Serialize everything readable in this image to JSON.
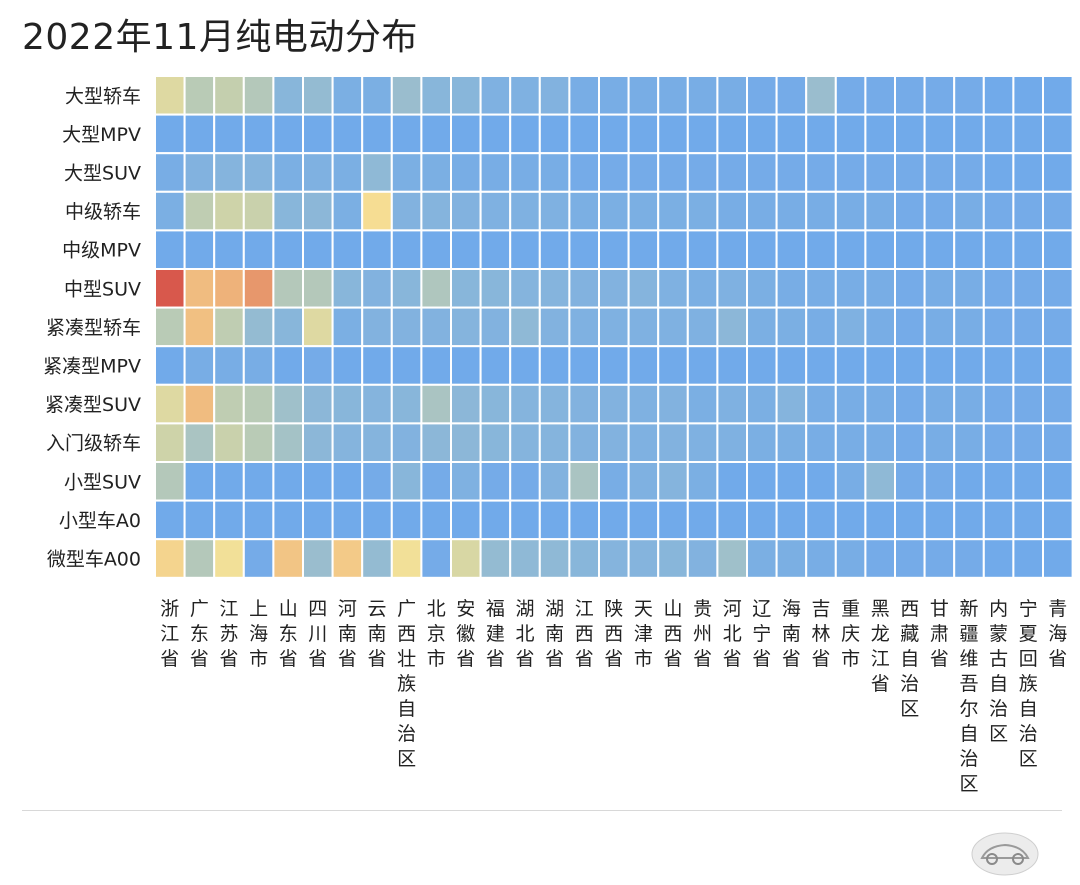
{
  "title": "2022年11月纯电动分布",
  "chart_data": {
    "type": "heatmap",
    "title": "2022年11月纯电动分布",
    "rows": [
      "大型轿车",
      "大型MPV",
      "大型SUV",
      "中级轿车",
      "中级MPV",
      "中型SUV",
      "紧凑型轿车",
      "紧凑型MPV",
      "紧凑型SUV",
      "入门级轿车",
      "小型SUV",
      "小型车A0",
      "微型车A00"
    ],
    "columns": [
      "浙江省",
      "广东省",
      "江苏省",
      "上海市",
      "山东省",
      "四川省",
      "河南省",
      "云南省",
      "广西壮族自治区",
      "北京市",
      "安徽省",
      "福建省",
      "湖北省",
      "湖南省",
      "江西省",
      "陕西省",
      "天津市",
      "山西省",
      "贵州省",
      "河北省",
      "辽宁省",
      "海南省",
      "吉林省",
      "重庆市",
      "黑龙江省",
      "西藏自治区",
      "甘肃省",
      "新疆维吾尔自治区",
      "内蒙古自治区",
      "宁夏回族自治区",
      "青海省"
    ],
    "values": [
      [
        0.5,
        0.36,
        0.4,
        0.34,
        0.16,
        0.22,
        0.08,
        0.08,
        0.24,
        0.16,
        0.16,
        0.1,
        0.1,
        0.12,
        0.06,
        0.06,
        0.06,
        0.06,
        0.06,
        0.06,
        0.04,
        0.04,
        0.24,
        0.04,
        0.04,
        0.04,
        0.04,
        0.04,
        0.02,
        0.02,
        0.02
      ],
      [
        0.02,
        0.02,
        0.02,
        0.02,
        0.02,
        0.02,
        0.02,
        0.02,
        0.02,
        0.02,
        0.02,
        0.02,
        0.02,
        0.02,
        0.02,
        0.02,
        0.02,
        0.02,
        0.02,
        0.02,
        0.02,
        0.02,
        0.02,
        0.02,
        0.02,
        0.02,
        0.02,
        0.02,
        0.02,
        0.02,
        0.02
      ],
      [
        0.06,
        0.12,
        0.14,
        0.14,
        0.08,
        0.1,
        0.08,
        0.2,
        0.08,
        0.08,
        0.06,
        0.06,
        0.06,
        0.06,
        0.04,
        0.04,
        0.04,
        0.04,
        0.04,
        0.04,
        0.04,
        0.04,
        0.04,
        0.04,
        0.04,
        0.04,
        0.04,
        0.04,
        0.02,
        0.02,
        0.02
      ],
      [
        0.08,
        0.38,
        0.44,
        0.42,
        0.16,
        0.18,
        0.08,
        0.62,
        0.12,
        0.14,
        0.12,
        0.1,
        0.1,
        0.1,
        0.08,
        0.08,
        0.08,
        0.08,
        0.08,
        0.06,
        0.06,
        0.06,
        0.06,
        0.06,
        0.06,
        0.04,
        0.04,
        0.06,
        0.04,
        0.04,
        0.04
      ],
      [
        0.02,
        0.02,
        0.02,
        0.02,
        0.02,
        0.02,
        0.02,
        0.02,
        0.02,
        0.02,
        0.02,
        0.02,
        0.02,
        0.02,
        0.02,
        0.02,
        0.02,
        0.02,
        0.02,
        0.02,
        0.02,
        0.02,
        0.02,
        0.02,
        0.02,
        0.02,
        0.02,
        0.02,
        0.02,
        0.02,
        0.02
      ],
      [
        1.0,
        0.76,
        0.8,
        0.86,
        0.34,
        0.34,
        0.16,
        0.12,
        0.16,
        0.32,
        0.16,
        0.16,
        0.14,
        0.14,
        0.12,
        0.12,
        0.14,
        0.1,
        0.08,
        0.1,
        0.08,
        0.06,
        0.06,
        0.06,
        0.06,
        0.04,
        0.06,
        0.06,
        0.04,
        0.04,
        0.04
      ],
      [
        0.36,
        0.74,
        0.38,
        0.22,
        0.16,
        0.5,
        0.08,
        0.12,
        0.12,
        0.12,
        0.14,
        0.12,
        0.2,
        0.12,
        0.1,
        0.1,
        0.1,
        0.1,
        0.1,
        0.18,
        0.08,
        0.08,
        0.06,
        0.1,
        0.06,
        0.04,
        0.06,
        0.06,
        0.04,
        0.04,
        0.04
      ],
      [
        0.02,
        0.06,
        0.06,
        0.06,
        0.02,
        0.04,
        0.02,
        0.02,
        0.02,
        0.02,
        0.02,
        0.02,
        0.02,
        0.02,
        0.02,
        0.02,
        0.02,
        0.02,
        0.02,
        0.02,
        0.02,
        0.02,
        0.02,
        0.02,
        0.02,
        0.02,
        0.02,
        0.02,
        0.02,
        0.02,
        0.02
      ],
      [
        0.5,
        0.76,
        0.38,
        0.36,
        0.26,
        0.18,
        0.16,
        0.14,
        0.16,
        0.3,
        0.18,
        0.16,
        0.14,
        0.14,
        0.12,
        0.12,
        0.1,
        0.12,
        0.08,
        0.1,
        0.08,
        0.14,
        0.06,
        0.06,
        0.06,
        0.04,
        0.06,
        0.06,
        0.04,
        0.04,
        0.04
      ],
      [
        0.44,
        0.3,
        0.42,
        0.36,
        0.28,
        0.18,
        0.14,
        0.14,
        0.12,
        0.18,
        0.18,
        0.16,
        0.14,
        0.14,
        0.12,
        0.12,
        0.1,
        0.12,
        0.1,
        0.1,
        0.08,
        0.08,
        0.06,
        0.06,
        0.06,
        0.04,
        0.06,
        0.06,
        0.04,
        0.04,
        0.04
      ],
      [
        0.34,
        0.02,
        0.02,
        0.02,
        0.02,
        0.02,
        0.02,
        0.04,
        0.16,
        0.04,
        0.1,
        0.04,
        0.04,
        0.12,
        0.3,
        0.06,
        0.1,
        0.14,
        0.08,
        0.02,
        0.02,
        0.02,
        0.02,
        0.06,
        0.2,
        0.04,
        0.04,
        0.02,
        0.02,
        0.02,
        0.02
      ],
      [
        0.02,
        0.02,
        0.02,
        0.02,
        0.02,
        0.02,
        0.02,
        0.02,
        0.02,
        0.02,
        0.02,
        0.02,
        0.02,
        0.02,
        0.02,
        0.02,
        0.02,
        0.02,
        0.02,
        0.02,
        0.02,
        0.02,
        0.02,
        0.02,
        0.02,
        0.02,
        0.02,
        0.02,
        0.02,
        0.02,
        0.02
      ],
      [
        0.66,
        0.34,
        0.58,
        0.04,
        0.72,
        0.24,
        0.7,
        0.22,
        0.58,
        0.04,
        0.48,
        0.22,
        0.2,
        0.2,
        0.16,
        0.14,
        0.14,
        0.16,
        0.12,
        0.26,
        0.08,
        0.08,
        0.06,
        0.06,
        0.04,
        0.04,
        0.04,
        0.04,
        0.02,
        0.02,
        0.02
      ]
    ],
    "value_range": [
      0,
      1
    ],
    "colors": {
      "low": "#6ea8ec",
      "mid_low": "#8fb9d6",
      "mid": "#c4cfae",
      "mid_high": "#f7e296",
      "high_mid": "#eeb27a",
      "high": "#d8584c"
    },
    "legend": "none",
    "grid": true
  }
}
